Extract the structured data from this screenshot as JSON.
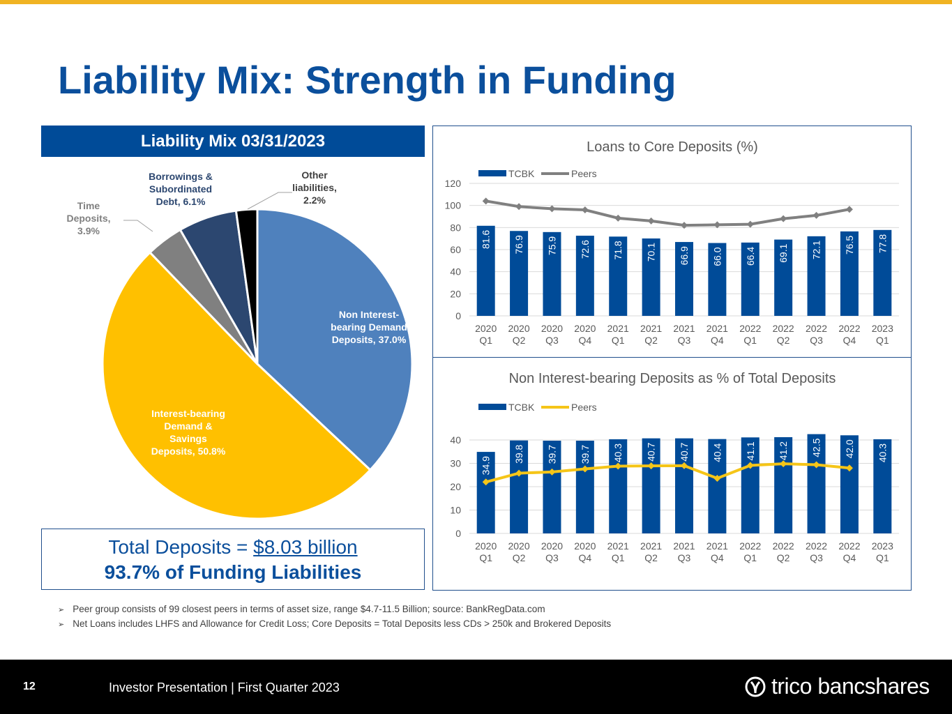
{
  "slide": {
    "title": "Liability Mix: Strength in Funding",
    "page_number": "12",
    "footer": "Investor Presentation | First Quarter 2023",
    "logo": "trico bancshares"
  },
  "mix": {
    "header": "Liability Mix 03/31/2023",
    "total_prefix": "Total Deposits = ",
    "total_value": "$8.03 billion",
    "total_line2": "93.7% of Funding Liabilities"
  },
  "notes": [
    "Peer group consists of 99 closest peers in terms of asset size, range $4.7-11.5 Billion; source: BankRegData.com",
    "Net Loans includes LHFS and Allowance for Credit Loss; Core Deposits = Total Deposits less CDs > 250k and Brokered Deposits"
  ],
  "chart_data": [
    {
      "type": "pie",
      "title": "Liability Mix 03/31/2023",
      "slices": [
        {
          "label": "Non Interest-bearing Demand Deposits",
          "value": 37.0,
          "color": "#4f81bd"
        },
        {
          "label": "Interest-bearing Demand & Savings Deposits",
          "value": 50.8,
          "color": "#ffc000"
        },
        {
          "label": "Time Deposits",
          "value": 3.9,
          "color": "#808080"
        },
        {
          "label": "Borrowings & Subordinated Debt",
          "value": 6.1,
          "color": "#2c4770"
        },
        {
          "label": "Other liabilities",
          "value": 2.2,
          "color": "#000000"
        }
      ]
    },
    {
      "type": "bar",
      "title": "Loans to Core Deposits (%)",
      "ylim": [
        0,
        120
      ],
      "yticks": [
        0,
        20,
        40,
        60,
        80,
        100,
        120
      ],
      "categories": [
        "2020 Q1",
        "2020 Q2",
        "2020 Q3",
        "2020 Q4",
        "2021 Q1",
        "2021 Q2",
        "2021 Q3",
        "2021 Q4",
        "2022 Q1",
        "2022 Q2",
        "2022 Q3",
        "2022 Q4",
        "2023 Q1"
      ],
      "series": [
        {
          "name": "TCBK",
          "kind": "bar",
          "color": "#004b98",
          "values": [
            81.6,
            76.9,
            75.9,
            72.6,
            71.8,
            70.1,
            66.9,
            66.0,
            66.4,
            69.1,
            72.1,
            76.5,
            77.8
          ]
        },
        {
          "name": "Peers",
          "kind": "line",
          "color": "#808080",
          "values": [
            104,
            99,
            97,
            96,
            88.5,
            86,
            82,
            82.5,
            83,
            88,
            91,
            96.5,
            null
          ]
        }
      ]
    },
    {
      "type": "bar",
      "title": "Non Interest-bearing Deposits as % of Total Deposits",
      "ylim": [
        0,
        45
      ],
      "yticks": [
        0,
        10,
        20,
        30,
        40
      ],
      "categories": [
        "2020 Q1",
        "2020 Q2",
        "2020 Q3",
        "2020 Q4",
        "2021 Q1",
        "2021 Q2",
        "2021 Q3",
        "2021 Q4",
        "2022 Q1",
        "2022 Q2",
        "2022 Q3",
        "2022 Q4",
        "2023 Q1"
      ],
      "series": [
        {
          "name": "TCBK",
          "kind": "bar",
          "color": "#004b98",
          "values": [
            34.9,
            39.8,
            39.7,
            39.7,
            40.3,
            40.7,
            40.7,
            40.4,
            41.1,
            41.2,
            42.5,
            42.0,
            40.3
          ]
        },
        {
          "name": "Peers",
          "kind": "line",
          "color": "#f5c518",
          "values": [
            22,
            25.8,
            26.3,
            27.6,
            28.8,
            28.9,
            29.0,
            23.6,
            29.1,
            29.8,
            29.4,
            28.0,
            null
          ]
        }
      ]
    }
  ]
}
